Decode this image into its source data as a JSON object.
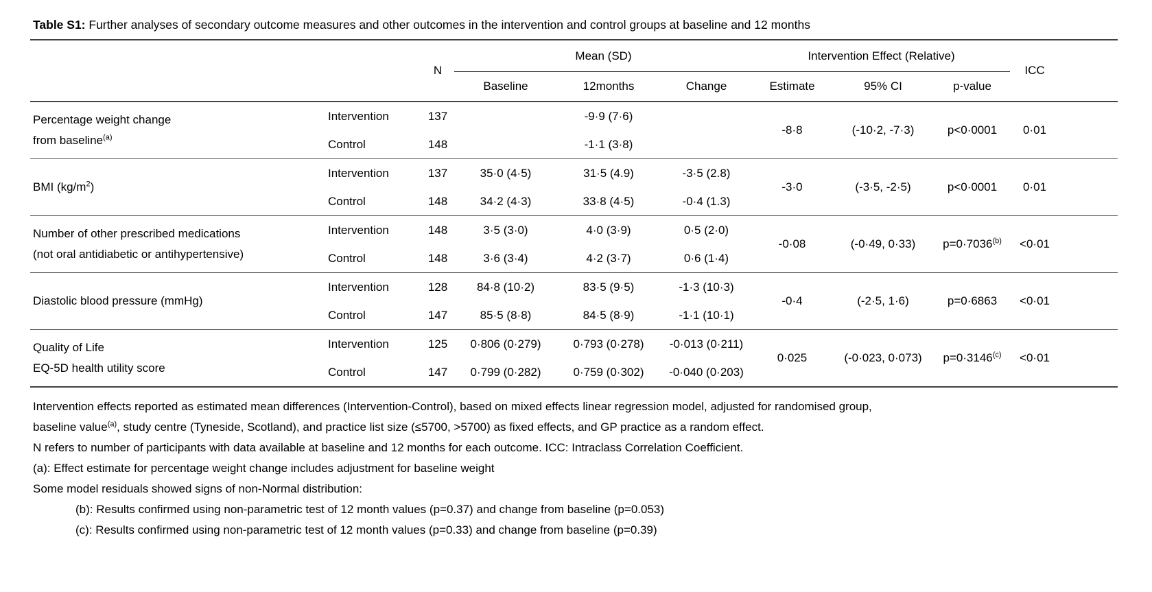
{
  "title": {
    "label": "Table S1:",
    "caption": " Further analyses of secondary outcome measures and other outcomes in the intervention and control groups at baseline and 12 months"
  },
  "header": {
    "n": "N",
    "mean_sd": "Mean (SD)",
    "intervention_effect": "Intervention Effect (Relative)",
    "icc": "ICC",
    "sub": [
      "Baseline",
      "12months",
      "Change",
      "Estimate",
      "95% CI",
      "p-value"
    ]
  },
  "rows": [
    {
      "line1": "Percentage weight change",
      "line2": "from baseline",
      "line2_sup": "(a)",
      "groups": [
        {
          "group": "Intervention",
          "n": "137",
          "baseline": "",
          "m12": "-9·9 (7·6)",
          "change": ""
        },
        {
          "group": "Control",
          "n": "148",
          "baseline": "",
          "m12": "-1·1 (3·8)",
          "change": ""
        }
      ],
      "estimate": "-8·8",
      "ci": "(-10·2, -7·3)",
      "p": "p<0·0001",
      "p_sup": "",
      "icc": "0·01"
    },
    {
      "line1_pre": "BMI (kg/m",
      "line1_sup": "2",
      "line1_post": ")",
      "groups": [
        {
          "group": "Intervention",
          "n": "137",
          "baseline": "35·0 (4·5)",
          "m12": "31·5 (4.9)",
          "change": "-3·5 (2.8)"
        },
        {
          "group": "Control",
          "n": "148",
          "baseline": "34·2 (4·3)",
          "m12": "33·8 (4·5)",
          "change": "-0·4 (1.3)"
        }
      ],
      "estimate": "-3·0",
      "ci": "(-3·5, -2·5)",
      "p": "p<0·0001",
      "p_sup": "",
      "icc": "0·01"
    },
    {
      "line1": "Number of other prescribed medications",
      "line2": "(not oral antidiabetic or antihypertensive)",
      "groups": [
        {
          "group": "Intervention",
          "n": "148",
          "baseline": "3·5 (3·0)",
          "m12": "4·0 (3·9)",
          "change": "0·5 (2·0)"
        },
        {
          "group": "Control",
          "n": "148",
          "baseline": "3·6 (3·4)",
          "m12": "4·2 (3·7)",
          "change": "0·6 (1·4)"
        }
      ],
      "estimate": "-0·08",
      "ci": "(-0·49, 0·33)",
      "p": "p=0·7036",
      "p_sup": "(b)",
      "icc": "<0·01"
    },
    {
      "line1": "Diastolic blood pressure (mmHg)",
      "groups": [
        {
          "group": "Intervention",
          "n": "128",
          "baseline": "84·8 (10·2)",
          "m12": "83·5 (9·5)",
          "change": "-1·3 (10·3)"
        },
        {
          "group": "Control",
          "n": "147",
          "baseline": "85·5 (8·8)",
          "m12": "84·5 (8·9)",
          "change": "-1·1 (10·1)"
        }
      ],
      "estimate": "-0·4",
      "ci": "(-2·5, 1·6)",
      "p": "p=0·6863",
      "p_sup": "",
      "icc": "<0·01"
    },
    {
      "line1": "Quality of Life",
      "line2": "EQ-5D health utility score",
      "groups": [
        {
          "group": "Intervention",
          "n": "125",
          "baseline": "0·806 (0·279)",
          "m12": "0·793 (0·278)",
          "change": "-0·013 (0·211)"
        },
        {
          "group": "Control",
          "n": "147",
          "baseline": "0·799 (0·282)",
          "m12": "0·759 (0·302)",
          "change": "-0·040 (0·203)"
        }
      ],
      "estimate": "0·025",
      "ci": "(-0·023, 0·073)",
      "p": "p=0·3146",
      "p_sup": "(c)",
      "icc": "<0·01"
    }
  ],
  "footnotes": {
    "fn1_line1": "Intervention effects reported as estimated mean differences (Intervention-Control), based on mixed effects linear regression model, adjusted for randomised group,",
    "fn1_line2_pre": "baseline value",
    "fn1_line2_sup": "(a)",
    "fn1_line2_post": ", study centre (Tyneside, Scotland), and practice list size (≤5700, >5700) as fixed effects, and GP practice as a random effect.",
    "fn2": "N refers to number of participants with data available at baseline and 12 months for each outcome. ICC: Intraclass Correlation Coefficient.",
    "fn3": "(a): Effect estimate for percentage weight change includes adjustment for baseline weight",
    "fn4": "Some model residuals showed signs of non-Normal distribution:",
    "fn5": "(b): Results confirmed using non-parametric test of 12 month values (p=0.37) and change from baseline (p=0.053)",
    "fn6": "(c): Results confirmed using non-parametric test of 12 month values (p=0.33) and change from baseline (p=0.39)"
  }
}
